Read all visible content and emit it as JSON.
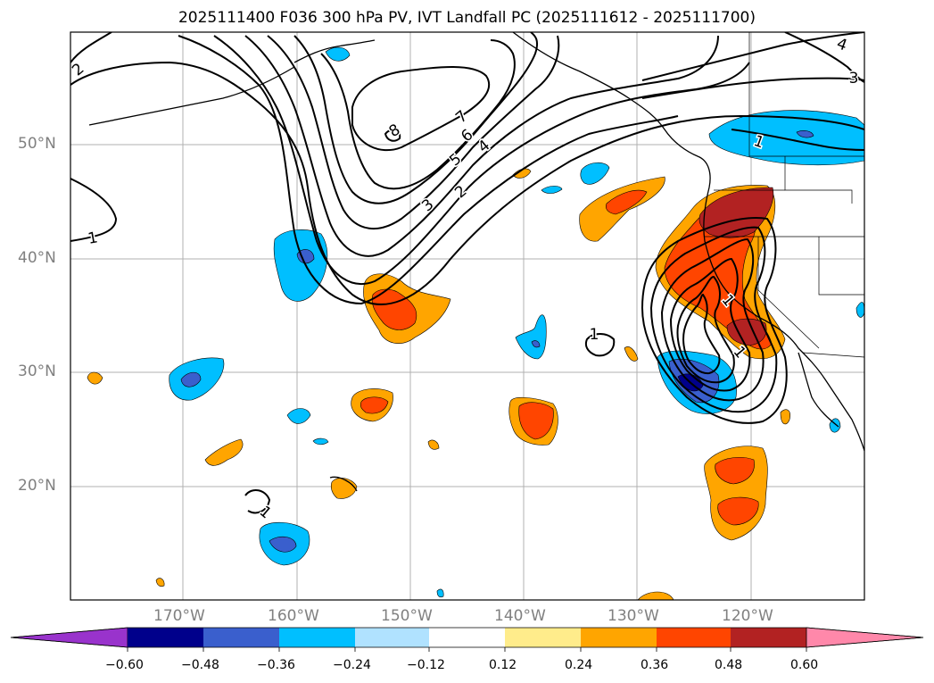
{
  "title": "2025111400 F036 300 hPa PV, IVT Landfall PC (2025111612 - 2025111700)",
  "axes": {
    "lat_labels": [
      "50°N",
      "40°N",
      "30°N",
      "20°N"
    ],
    "lon_labels": [
      "170°W",
      "160°W",
      "150°W",
      "140°W",
      "130°W",
      "120°W"
    ]
  },
  "colorbar": {
    "ticks": [
      "−0.60",
      "−0.48",
      "−0.36",
      "−0.24",
      "−0.12",
      "0.12",
      "0.24",
      "0.36",
      "0.48",
      "0.60"
    ],
    "colors": [
      "#9933cc",
      "#00008b",
      "#3a5fcd",
      "#00bfff",
      "#b0e2ff",
      "#ffffff",
      "#ffec8b",
      "#ffa500",
      "#ff4500",
      "#b22222",
      "#ff88aa"
    ]
  },
  "contour_labels": [
    "8",
    "7",
    "6",
    "5",
    "4",
    "3",
    "2",
    "1",
    "1",
    "1",
    "2",
    "3",
    "4",
    "1",
    "1",
    "1"
  ],
  "colors": {
    "orange": "#ffa500",
    "red_orange": "#ff4500",
    "firebrick": "#b22222",
    "deep_sky_blue": "#00bfff",
    "royal_blue": "#3a5fcd",
    "navy": "#00008b"
  }
}
